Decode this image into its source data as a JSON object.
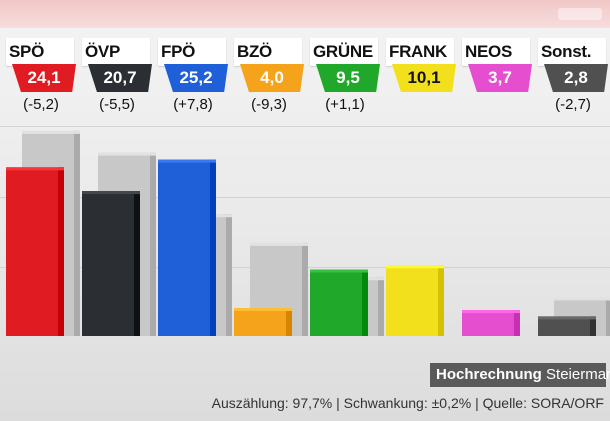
{
  "broadcast": {
    "title_bold": "Hochrechnung",
    "title_region": "Steiermark",
    "source_line": "Auszählung: 97,7% | Schwankung: ±0,2% | Quelle: SORA/ORF"
  },
  "chart_data": {
    "type": "bar",
    "categories": [
      "SPÖ",
      "ÖVP",
      "FPÖ",
      "BZÖ",
      "GRÜNE",
      "FRANK",
      "NEOS",
      "Sonst."
    ],
    "series": [
      {
        "values": [
          24.1,
          20.7,
          25.2,
          4.0,
          9.5,
          10.1,
          3.7,
          2.8
        ]
      },
      {
        "values": [
          29.3,
          26.2,
          17.4,
          13.3,
          8.4,
          null,
          null,
          5.5
        ]
      }
    ],
    "value_labels": [
      "24,1",
      "20,7",
      "25,2",
      "4,0",
      "9,5",
      "10,1",
      "3,7",
      "2,8"
    ],
    "change_labels": [
      "(-5,2)",
      "(-5,5)",
      "(+7,8)",
      "(-9,3)",
      "(+1,1)",
      "",
      "",
      "(-2,7)"
    ],
    "colors": [
      "#e11b22",
      "#2b2f33",
      "#1f5fd8",
      "#f4a31a",
      "#20a82a",
      "#f2e01c",
      "#e54fcf",
      "#505050"
    ],
    "previous_color": "#c8c8c8",
    "label_text_colors": [
      "#ffffff",
      "#ffffff",
      "#ffffff",
      "#ffffff",
      "#ffffff",
      "#111111",
      "#ffffff",
      "#ffffff"
    ],
    "ylim": [
      0,
      30
    ],
    "grid": true,
    "legend": "none"
  }
}
